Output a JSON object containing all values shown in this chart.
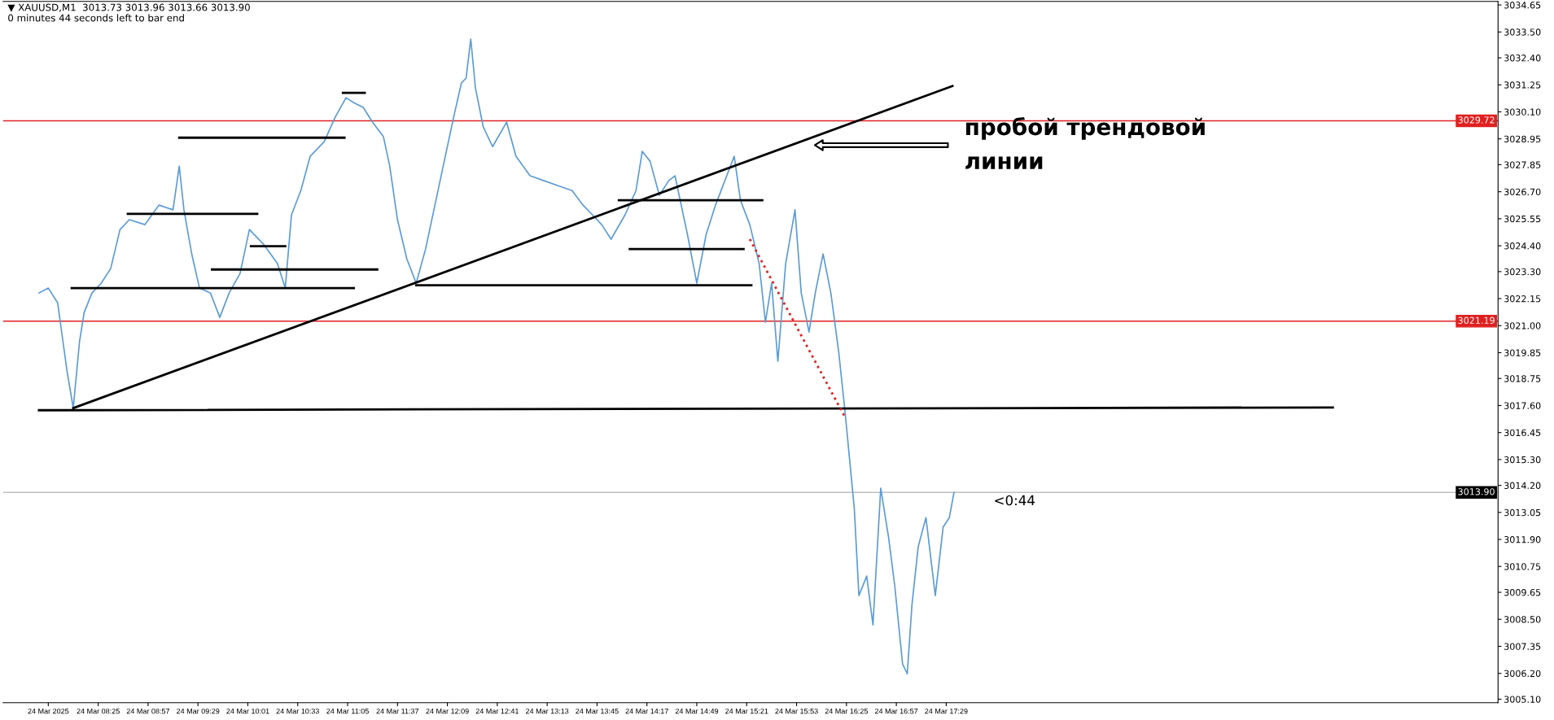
{
  "chart_data": {
    "type": "line",
    "title": "▼ XAUUSD,M1  3013.73 3013.96 3013.66 3013.90",
    "subtitle": "0 minutes 44 seconds left to bar end",
    "xlim": [
      "2025-03-24T07:24",
      "2025-03-24T23:23"
    ],
    "ylim": [
      3004.95,
      3034.8
    ],
    "xticks": [
      {
        "value": "2025-03-24T07:53",
        "label": "24 Mar 2025"
      },
      {
        "value": "2025-03-24T08:25",
        "label": "24 Mar 08:25"
      },
      {
        "value": "2025-03-24T08:57",
        "label": "24 Mar 08:57"
      },
      {
        "value": "2025-03-24T09:29",
        "label": "24 Mar 09:29"
      },
      {
        "value": "2025-03-24T10:01",
        "label": "24 Mar 10:01"
      },
      {
        "value": "2025-03-24T10:33",
        "label": "24 Mar 10:33"
      },
      {
        "value": "2025-03-24T11:05",
        "label": "24 Mar 11:05"
      },
      {
        "value": "2025-03-24T11:37",
        "label": "24 Mar 11:37"
      },
      {
        "value": "2025-03-24T12:09",
        "label": "24 Mar 12:09"
      },
      {
        "value": "2025-03-24T12:41",
        "label": "24 Mar 12:41"
      },
      {
        "value": "2025-03-24T13:13",
        "label": "24 Mar 13:13"
      },
      {
        "value": "2025-03-24T13:45",
        "label": "24 Mar 13:45"
      },
      {
        "value": "2025-03-24T14:17",
        "label": "24 Mar 14:17"
      },
      {
        "value": "2025-03-24T14:49",
        "label": "24 Mar 14:49"
      },
      {
        "value": "2025-03-24T15:21",
        "label": "24 Mar 15:21"
      },
      {
        "value": "2025-03-24T15:53",
        "label": "24 Mar 15:53"
      },
      {
        "value": "2025-03-24T16:25",
        "label": "24 Mar 16:25"
      },
      {
        "value": "2025-03-24T16:57",
        "label": "24 Mar 16:57"
      },
      {
        "value": "2025-03-24T17:29",
        "label": "24 Mar 17:29"
      }
    ],
    "yticks": [
      {
        "value": 3034.65,
        "label": "3034.65"
      },
      {
        "value": 3033.5,
        "label": "3033.50"
      },
      {
        "value": 3032.4,
        "label": "3032.40"
      },
      {
        "value": 3031.25,
        "label": "3031.25"
      },
      {
        "value": 3030.1,
        "label": "3030.10"
      },
      {
        "value": 3028.95,
        "label": "3028.95"
      },
      {
        "value": 3027.85,
        "label": "3027.85"
      },
      {
        "value": 3026.7,
        "label": "3026.70"
      },
      {
        "value": 3025.55,
        "label": "3025.55"
      },
      {
        "value": 3024.4,
        "label": "3024.40"
      },
      {
        "value": 3023.3,
        "label": "3023.30"
      },
      {
        "value": 3022.15,
        "label": "3022.15"
      },
      {
        "value": 3021.0,
        "label": "3021.00"
      },
      {
        "value": 3019.85,
        "label": "3019.85"
      },
      {
        "value": 3018.75,
        "label": "3018.75"
      },
      {
        "value": 3017.6,
        "label": "3017.60"
      },
      {
        "value": 3016.45,
        "label": "3016.45"
      },
      {
        "value": 3015.3,
        "label": "3015.30"
      },
      {
        "value": 3014.2,
        "label": "3014.20"
      },
      {
        "value": 3013.05,
        "label": "3013.05"
      },
      {
        "value": 3011.9,
        "label": "3011.90"
      },
      {
        "value": 3010.75,
        "label": "3010.75"
      },
      {
        "value": 3009.65,
        "label": "3009.65"
      },
      {
        "value": 3008.5,
        "label": "3008.50"
      },
      {
        "value": 3007.35,
        "label": "3007.35"
      },
      {
        "value": 3006.2,
        "label": "3006.20"
      },
      {
        "value": 3005.1,
        "label": "3005.10"
      }
    ],
    "grid": false,
    "legend": false,
    "marker": "none",
    "line_style": "solid",
    "series": [
      {
        "color": "#5b9bd5",
        "x": [
          "2025-03-24T07:47",
          "2025-03-24T07:53",
          "2025-03-24T07:59",
          "2025-03-24T08:05",
          "2025-03-24T08:09",
          "2025-03-24T08:13",
          "2025-03-24T08:16",
          "2025-03-24T08:21",
          "2025-03-24T08:27",
          "2025-03-24T08:33",
          "2025-03-24T08:39",
          "2025-03-24T08:45",
          "2025-03-24T08:55",
          "2025-03-24T09:04",
          "2025-03-24T09:13",
          "2025-03-24T09:17",
          "2025-03-24T09:20",
          "2025-03-24T09:25",
          "2025-03-24T09:30",
          "2025-03-24T09:37",
          "2025-03-24T09:43",
          "2025-03-24T09:49",
          "2025-03-24T09:56",
          "2025-03-24T10:02",
          "2025-03-24T10:11",
          "2025-03-24T10:20",
          "2025-03-24T10:25",
          "2025-03-24T10:29",
          "2025-03-24T10:35",
          "2025-03-24T10:41",
          "2025-03-24T10:50",
          "2025-03-24T10:57",
          "2025-03-24T11:04",
          "2025-03-24T11:09",
          "2025-03-24T11:15",
          "2025-03-24T11:21",
          "2025-03-24T11:28",
          "2025-03-24T11:32",
          "2025-03-24T11:37",
          "2025-03-24T11:43",
          "2025-03-24T11:49",
          "2025-03-24T11:55",
          "2025-03-24T12:01",
          "2025-03-24T12:07",
          "2025-03-24T12:13",
          "2025-03-24T12:18",
          "2025-03-24T12:21",
          "2025-03-24T12:24",
          "2025-03-24T12:27",
          "2025-03-24T12:32",
          "2025-03-24T12:38",
          "2025-03-24T12:47",
          "2025-03-24T12:53",
          "2025-03-24T13:02",
          "2025-03-24T13:11",
          "2025-03-24T13:20",
          "2025-03-24T13:29",
          "2025-03-24T13:36",
          "2025-03-24T13:42",
          "2025-03-24T13:48",
          "2025-03-24T13:54",
          "2025-03-24T14:03",
          "2025-03-24T14:10",
          "2025-03-24T14:14",
          "2025-03-24T14:19",
          "2025-03-24T14:25",
          "2025-03-24T14:31",
          "2025-03-24T14:35",
          "2025-03-24T14:43",
          "2025-03-24T14:49",
          "2025-03-24T14:55",
          "2025-03-24T15:01",
          "2025-03-24T15:07",
          "2025-03-24T15:13",
          "2025-03-24T15:17",
          "2025-03-24T15:23",
          "2025-03-24T15:29",
          "2025-03-24T15:33",
          "2025-03-24T15:37",
          "2025-03-24T15:41",
          "2025-03-24T15:46",
          "2025-03-24T15:52",
          "2025-03-24T15:56",
          "2025-03-24T16:01",
          "2025-03-24T16:05",
          "2025-03-24T16:10",
          "2025-03-24T16:15",
          "2025-03-24T16:20",
          "2025-03-24T16:24",
          "2025-03-24T16:27",
          "2025-03-24T16:30",
          "2025-03-24T16:33",
          "2025-03-24T16:38",
          "2025-03-24T16:42",
          "2025-03-24T16:47",
          "2025-03-24T16:52",
          "2025-03-24T16:56",
          "2025-03-24T17:01",
          "2025-03-24T17:04",
          "2025-03-24T17:07",
          "2025-03-24T17:11",
          "2025-03-24T17:16",
          "2025-03-24T17:22",
          "2025-03-24T17:27",
          "2025-03-24T17:31",
          "2025-03-24T17:34"
        ],
        "values": [
          3022.39,
          3022.6,
          3021.97,
          3019.07,
          3017.49,
          3020.31,
          3021.56,
          3022.39,
          3022.81,
          3023.43,
          3025.09,
          3025.51,
          3025.3,
          3026.13,
          3025.93,
          3027.79,
          3025.93,
          3024.05,
          3022.6,
          3022.39,
          3021.35,
          3022.39,
          3023.22,
          3025.09,
          3024.47,
          3023.64,
          3022.6,
          3025.72,
          3026.75,
          3028.21,
          3028.83,
          3029.87,
          3030.7,
          3030.49,
          3030.29,
          3029.66,
          3029.04,
          3027.79,
          3025.51,
          3023.84,
          3022.81,
          3024.26,
          3026.13,
          3028.0,
          3029.87,
          3031.33,
          3031.53,
          3033.2,
          3031.12,
          3029.46,
          3028.62,
          3029.66,
          3028.21,
          3027.38,
          3027.17,
          3026.96,
          3026.75,
          3026.13,
          3025.72,
          3025.3,
          3024.68,
          3025.72,
          3026.75,
          3028.42,
          3028.0,
          3026.55,
          3027.17,
          3027.38,
          3024.88,
          3022.81,
          3024.88,
          3026.13,
          3027.17,
          3028.21,
          3026.34,
          3025.3,
          3023.64,
          3021.14,
          3022.81,
          3019.48,
          3023.64,
          3025.93,
          3022.39,
          3020.73,
          3022.39,
          3024.05,
          3022.39,
          3019.9,
          3017.4,
          3015.32,
          3013.25,
          3009.51,
          3010.34,
          3008.26,
          3014.08,
          3012.0,
          3009.92,
          3006.6,
          3006.18,
          3009.09,
          3011.58,
          3012.83,
          3009.51,
          3012.42,
          3012.83,
          3013.9
        ]
      },
      {
        "color": "#000000",
        "x": [
          "2025-03-24T08:09",
          "2025-03-24T17:33"
        ],
        "values": [
          3017.49,
          3031.2
        ]
      },
      {
        "color": "#000000",
        "x": [
          "2025-03-24T07:47",
          "2025-03-24T21:37"
        ],
        "values": [
          3017.4,
          3017.52
        ]
      },
      {
        "color": "#000000",
        "x": [
          "2025-03-24T08:08",
          "2025-03-24T11:09"
        ],
        "values": [
          3022.6,
          3022.6
        ]
      },
      {
        "color": "#000000",
        "x": [
          "2025-03-24T09:38",
          "2025-03-24T11:24"
        ],
        "values": [
          3023.39,
          3023.39
        ]
      },
      {
        "color": "#000000",
        "x": [
          "2025-03-24T10:03",
          "2025-03-24T10:25"
        ],
        "values": [
          3024.38,
          3024.38
        ]
      },
      {
        "color": "#000000",
        "x": [
          "2025-03-24T08:44",
          "2025-03-24T10:07"
        ],
        "values": [
          3025.76,
          3025.76
        ]
      },
      {
        "color": "#000000",
        "x": [
          "2025-03-24T09:17",
          "2025-03-24T11:03"
        ],
        "values": [
          3029.0,
          3029.0
        ]
      },
      {
        "color": "#000000",
        "x": [
          "2025-03-24T11:02",
          "2025-03-24T11:16"
        ],
        "values": [
          3030.91,
          3030.91
        ]
      },
      {
        "color": "#000000",
        "x": [
          "2025-03-24T11:49",
          "2025-03-24T15:24"
        ],
        "values": [
          3022.72,
          3022.72
        ]
      },
      {
        "color": "#000000",
        "x": [
          "2025-03-24T14:06",
          "2025-03-24T15:19"
        ],
        "values": [
          3024.26,
          3024.26
        ]
      },
      {
        "color": "#000000",
        "x": [
          "2025-03-24T13:59",
          "2025-03-24T15:31"
        ],
        "values": [
          3026.34,
          3026.34
        ]
      },
      {
        "color": "#e02020",
        "line_style": "dotted",
        "x": [
          "2025-03-24T15:23",
          "2025-03-24T16:24"
        ],
        "values": [
          3024.68,
          3017.11
        ]
      }
    ],
    "ref_lines": [
      {
        "axis": "y",
        "value": 3029.72,
        "label": "3029.72",
        "color": "#e02020"
      },
      {
        "axis": "y",
        "value": 3021.19,
        "label": "3021.19",
        "color": "#e02020"
      },
      {
        "axis": "y",
        "value": 3013.9,
        "label": "3013.90",
        "color": "#c0c0c0"
      }
    ],
    "annotations": [
      "пробой трендовой\nлинии",
      "<0:44"
    ]
  }
}
